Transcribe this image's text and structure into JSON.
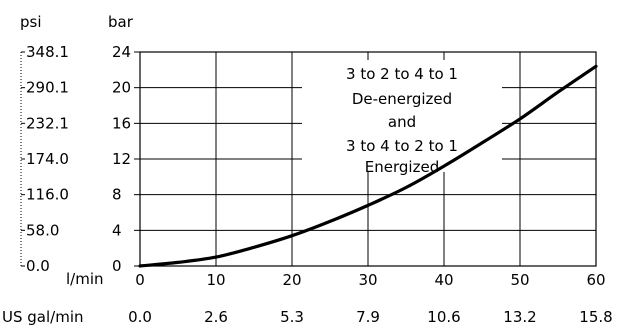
{
  "chart_data": {
    "type": "line",
    "title": "",
    "x_unit_primary": "l/min",
    "x_unit_secondary": "US gal/min",
    "y_unit_left": "psi",
    "y_unit_right": "bar",
    "xlim": [
      0,
      60
    ],
    "ylim": [
      0,
      24
    ],
    "x_ticks": [
      0,
      10,
      20,
      30,
      40,
      50,
      60
    ],
    "x_ticks_secondary": [
      "0.0",
      "2.6",
      "5.3",
      "7.9",
      "10.6",
      "13.2",
      "15.8"
    ],
    "y_ticks_bar": [
      0,
      4,
      8,
      12,
      16,
      20,
      24
    ],
    "y_ticks_psi": [
      "0.0",
      "58.0",
      "116.0",
      "174.0",
      "232.1",
      "290.1",
      "348.1"
    ],
    "grid": true,
    "annotation": {
      "lines": [
        "3 to 2 to 4 to 1",
        "De-energized",
        "and",
        "3 to 4 to 2 to 1",
        "Energized"
      ]
    },
    "series": [
      {
        "x": [
          0,
          5,
          10,
          15,
          20,
          25,
          30,
          35,
          40,
          45,
          50,
          55,
          60
        ],
        "y": [
          0,
          0.4,
          1.0,
          2.1,
          3.4,
          5.0,
          6.8,
          8.8,
          11.2,
          13.8,
          16.5,
          19.5,
          22.4
        ]
      }
    ]
  }
}
